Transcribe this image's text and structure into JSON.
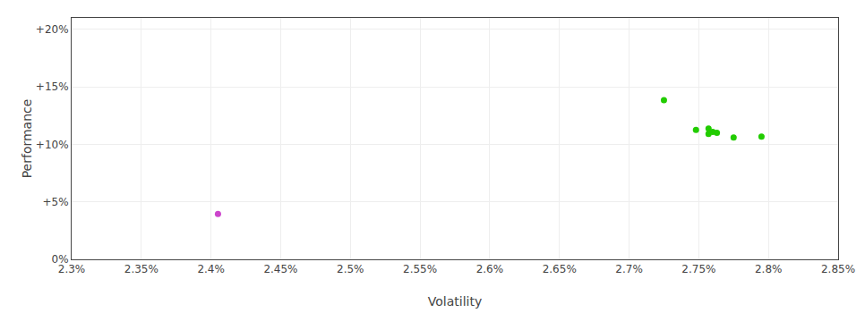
{
  "chart_data": {
    "type": "scatter",
    "xlabel": "Volatility",
    "ylabel": "Performance",
    "xlim": [
      0.023,
      0.0285
    ],
    "ylim": [
      0.0,
      0.21
    ],
    "xticks": [
      {
        "value": 0.023,
        "label": "2.3%"
      },
      {
        "value": 0.0235,
        "label": "2.35%"
      },
      {
        "value": 0.024,
        "label": "2.4%"
      },
      {
        "value": 0.0245,
        "label": "2.45%"
      },
      {
        "value": 0.025,
        "label": "2.5%"
      },
      {
        "value": 0.0255,
        "label": "2.55%"
      },
      {
        "value": 0.026,
        "label": "2.6%"
      },
      {
        "value": 0.0265,
        "label": "2.65%"
      },
      {
        "value": 0.027,
        "label": "2.7%"
      },
      {
        "value": 0.0275,
        "label": "2.75%"
      },
      {
        "value": 0.028,
        "label": "2.8%"
      },
      {
        "value": 0.0285,
        "label": "2.85%"
      }
    ],
    "yticks": [
      {
        "value": 0.0,
        "label": "0%"
      },
      {
        "value": 0.05,
        "label": "+5%"
      },
      {
        "value": 0.1,
        "label": "+10%"
      },
      {
        "value": 0.15,
        "label": "+15%"
      },
      {
        "value": 0.2,
        "label": "+20%"
      }
    ],
    "grid": true,
    "series": [
      {
        "color": "#22cc00",
        "x": [
          0.02725,
          0.02748,
          0.02757,
          0.0276,
          0.02763,
          0.02757,
          0.02775,
          0.02795
        ],
        "values": [
          0.1385,
          0.1125,
          0.1138,
          0.1108,
          0.11,
          0.109,
          0.106,
          0.1068
        ]
      },
      {
        "color": "#cc44cc",
        "x": [
          0.02405
        ],
        "values": [
          0.0395
        ]
      }
    ]
  }
}
